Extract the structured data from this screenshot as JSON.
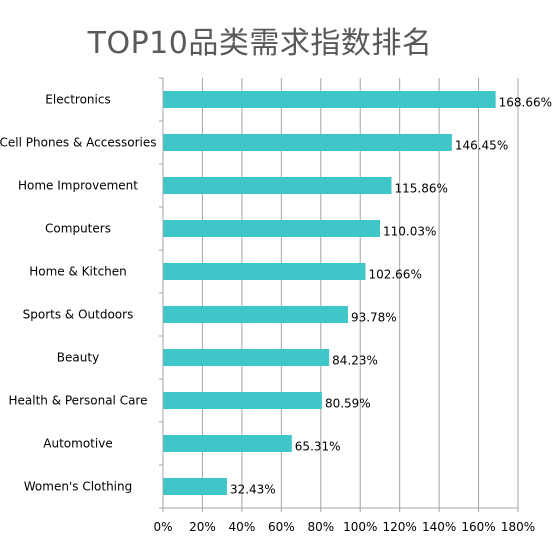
{
  "chart_data": {
    "type": "bar",
    "orientation": "horizontal",
    "title": "TOP10品类需求指数排名",
    "categories": [
      "Electronics",
      "Cell Phones & Accessories",
      "Home Improvement",
      "Computers",
      "Home & Kitchen",
      "Sports & Outdoors",
      "Beauty",
      "Health & Personal Care",
      "Automotive",
      "Women's Clothing"
    ],
    "values": [
      168.66,
      146.45,
      115.86,
      110.03,
      102.66,
      93.78,
      84.23,
      80.59,
      65.31,
      32.43
    ],
    "value_labels": [
      "168.66%",
      "146.45%",
      "115.86%",
      "110.03%",
      "102.66%",
      "93.78%",
      "84.23%",
      "80.59%",
      "65.31%",
      "32.43%"
    ],
    "xlim": [
      0,
      180
    ],
    "xticks": [
      "0%",
      "20%",
      "40%",
      "60%",
      "80%",
      "100%",
      "120%",
      "140%",
      "160%",
      "180%"
    ],
    "xlabel": "",
    "ylabel": "",
    "grid": "vertical",
    "legend": "none",
    "bar_color": "#3ec6c8",
    "grid_color": "#a6a6a6"
  }
}
